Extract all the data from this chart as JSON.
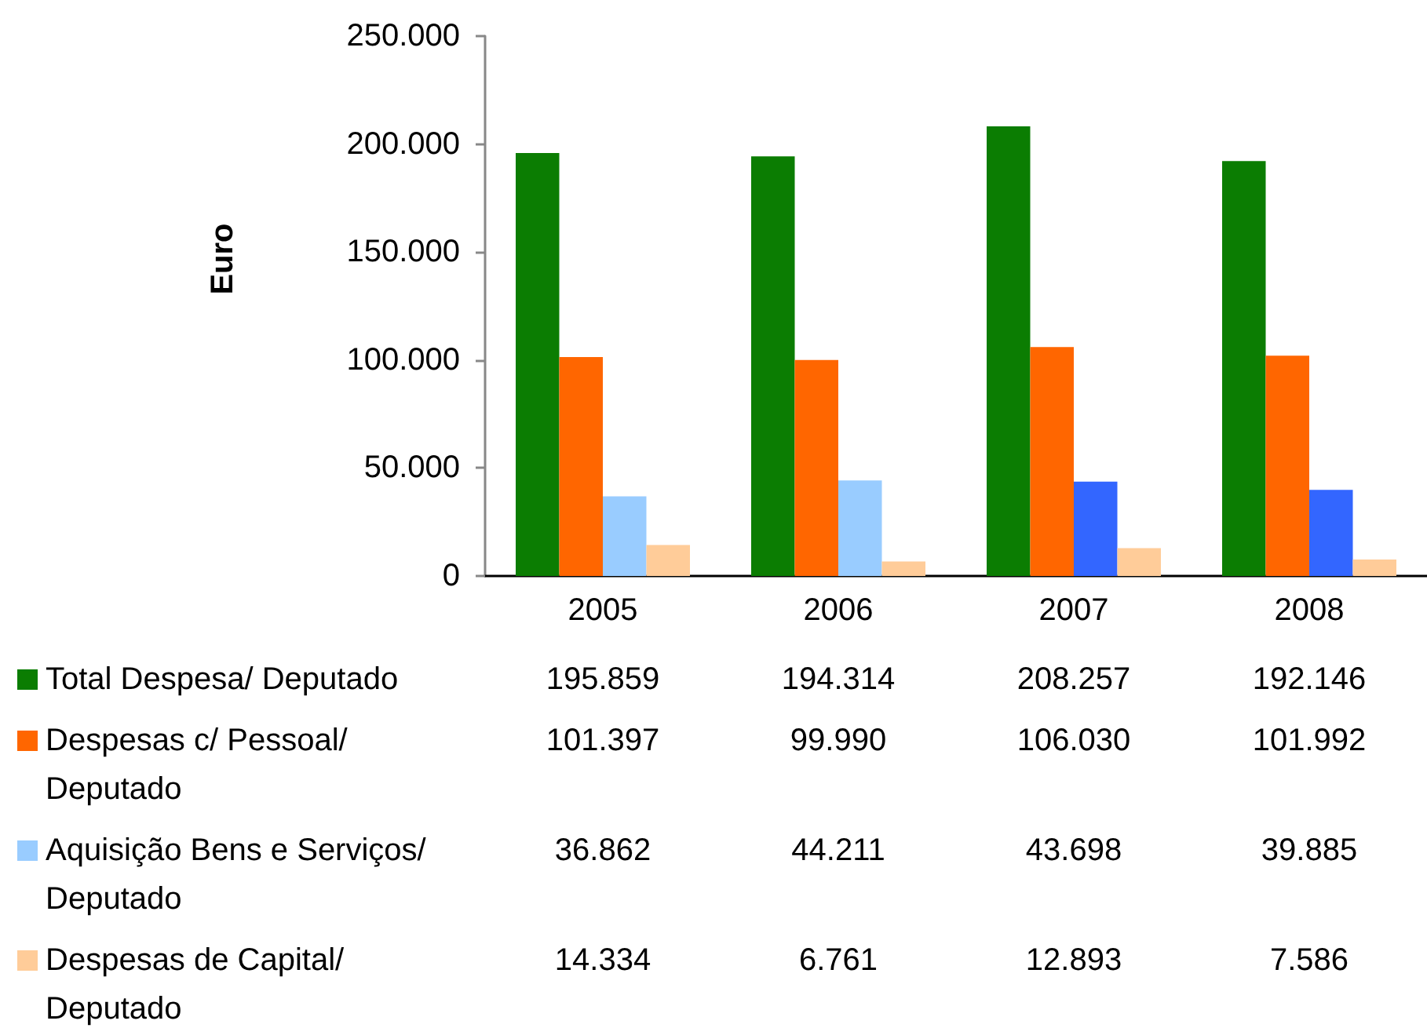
{
  "chart_data": {
    "type": "bar",
    "ylabel": "Euro",
    "categories": [
      "2005",
      "2006",
      "2007",
      "2008"
    ],
    "series": [
      {
        "name": "Total Despesa/ Deputado",
        "color": "#0b7d02",
        "values": [
          195859,
          194314,
          208257,
          192146
        ],
        "value_labels": [
          "195.859",
          "194.314",
          "208.257",
          "192.146"
        ]
      },
      {
        "name": "Despesas c/ Pessoal/ Deputado",
        "color": "#ff6600",
        "values": [
          101397,
          99990,
          106030,
          101992
        ],
        "value_labels": [
          "101.397",
          "99.990",
          "106.030",
          "101.992"
        ]
      },
      {
        "name": "Aquisição Bens e Serviços/ Deputado",
        "color": "#99ccff",
        "colors": [
          "#99ccff",
          "#99ccff",
          "#3366ff",
          "#3366ff"
        ],
        "values": [
          36862,
          44211,
          43698,
          39885
        ],
        "value_labels": [
          "36.862",
          "44.211",
          "43.698",
          "39.885"
        ]
      },
      {
        "name": "Despesas de Capital/ Deputado",
        "color": "#ffcc99",
        "values": [
          14334,
          6761,
          12893,
          7586
        ],
        "value_labels": [
          "14.334",
          "6.761",
          "12.893",
          "7.586"
        ]
      }
    ],
    "ylim": [
      0,
      250000
    ],
    "yticks": [
      0,
      {
        "value": 50000,
        "label": "50.000"
      },
      {
        "value": 100000,
        "label": "100.000"
      },
      {
        "value": 150000,
        "label": "150.000"
      },
      {
        "value": 200000,
        "label": "200.000"
      },
      {
        "value": 250000,
        "label": "250.000"
      }
    ],
    "grid": false,
    "legend": "bottom left"
  }
}
